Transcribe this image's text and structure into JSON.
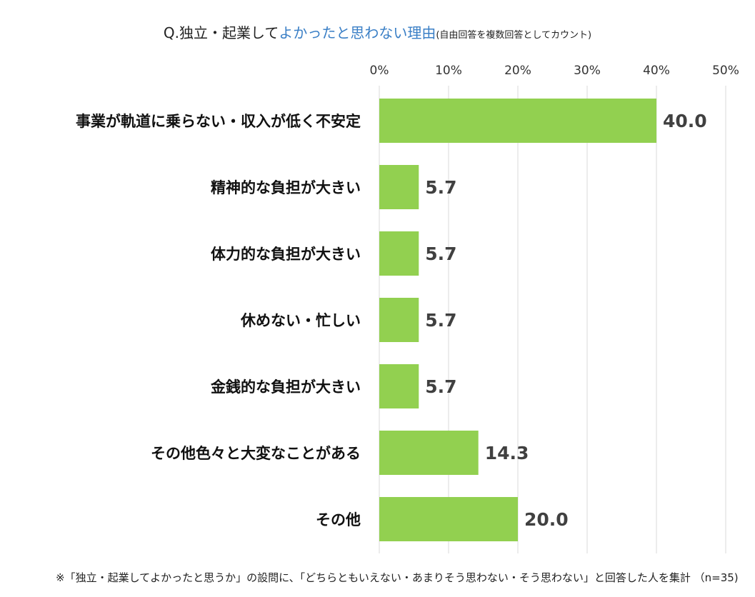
{
  "title": {
    "prefix": "Q.独立・起業して",
    "highlight": "よかったと思わない理由",
    "suffix": "(自由回答を複数回答としてカウント)"
  },
  "note": "※「独立・起業してよかったと思うか」の設問に、「どちらともいえない・あまりそう思わない・そう思わない」と回答した人を集計 （n=35)",
  "chart_data": {
    "type": "bar",
    "orientation": "horizontal",
    "categories": [
      "事業が軌道に乗らない・収入が低く不安定",
      "精神的な負担が大きい",
      "体力的な負担が大きい",
      "休めない・忙しい",
      "金銭的な負担が大きい",
      "その他色々と大変なことがある",
      "その他"
    ],
    "values": [
      40.0,
      5.7,
      5.7,
      5.7,
      5.7,
      14.3,
      20.0
    ],
    "value_labels": [
      "40.0",
      "5.7",
      "5.7",
      "5.7",
      "5.7",
      "14.3",
      "20.0"
    ],
    "xlim": [
      0,
      50
    ],
    "ticks": [
      0,
      10,
      20,
      30,
      40,
      50
    ],
    "tick_labels": [
      "0%",
      "10%",
      "20%",
      "30%",
      "40%",
      "50%"
    ],
    "grid": true,
    "axis_position": "top",
    "bar_color": "#92d050",
    "unit": "%"
  }
}
